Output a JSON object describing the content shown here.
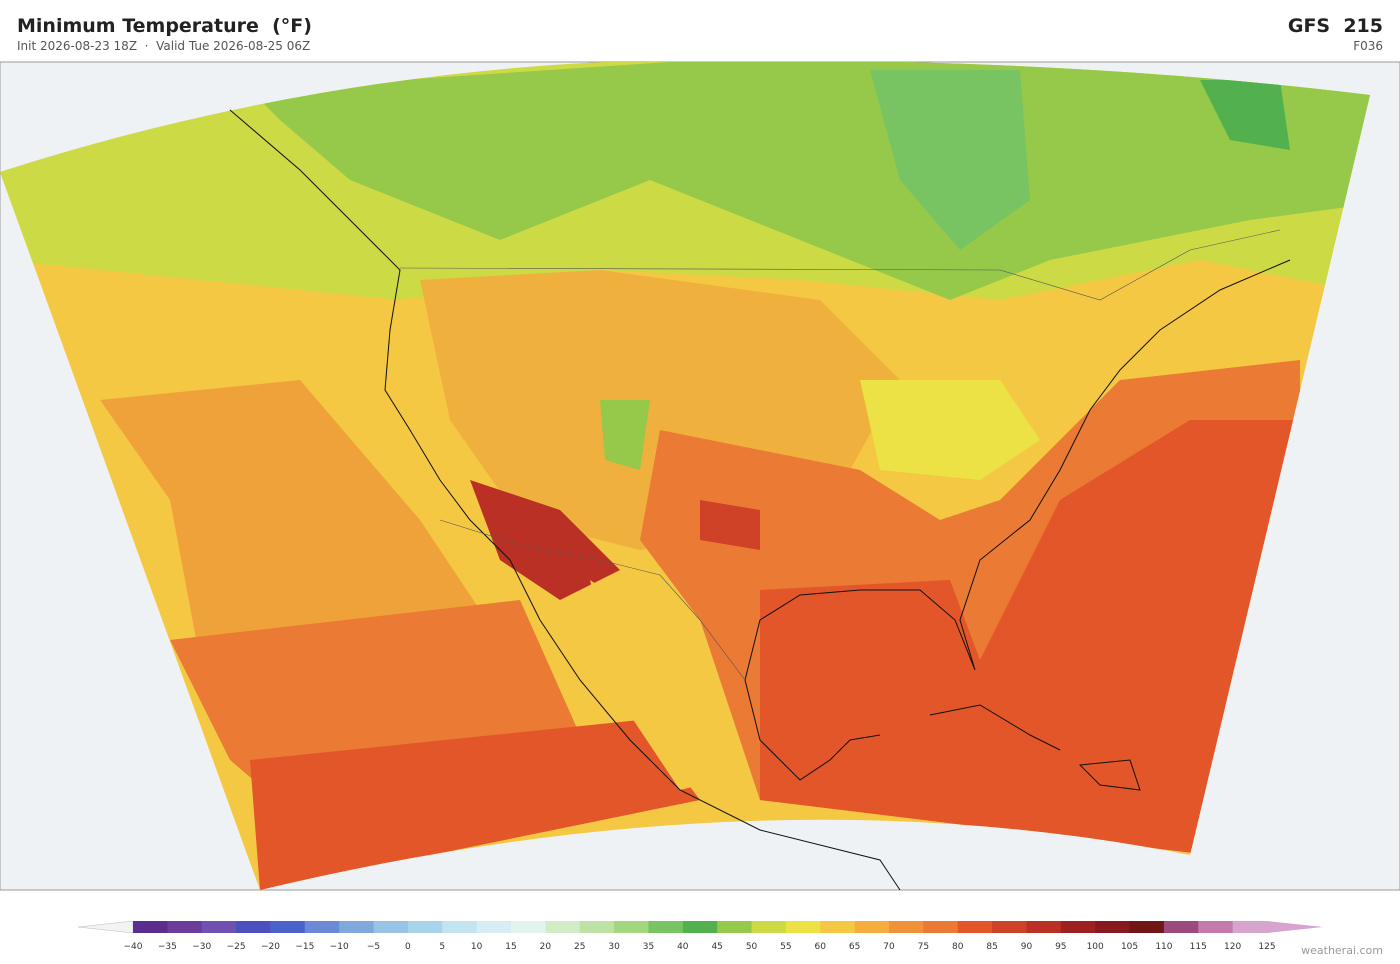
{
  "header": {
    "title": "Minimum Temperature  (°F)",
    "subtitle": "Init 2026-08-23 18Z  ·  Valid Tue 2026-08-25 06Z",
    "model": "GFS  215",
    "forecast_hour": "F036"
  },
  "colorbar": {
    "labels": [
      "−40",
      "−35",
      "−30",
      "−25",
      "−20",
      "−15",
      "−10",
      "−5",
      "0",
      "5",
      "10",
      "15",
      "20",
      "25",
      "30",
      "35",
      "40",
      "45",
      "50",
      "55",
      "60",
      "65",
      "70",
      "75",
      "80",
      "85",
      "90",
      "95",
      "100",
      "105",
      "110",
      "115",
      "120",
      "125"
    ],
    "colors": [
      "#5b2d8e",
      "#6a3d9a",
      "#7050b0",
      "#4b4fc0",
      "#4a63cc",
      "#6a8ad6",
      "#7fa8dc",
      "#98c3e4",
      "#a9d3ea",
      "#c2e3f0",
      "#d6edf4",
      "#e3f3ef",
      "#d2ecc8",
      "#bde3a4",
      "#a2d67f",
      "#79c462",
      "#52b04e",
      "#96c84a",
      "#ccda46",
      "#ece145",
      "#f4c842",
      "#f5ae3e",
      "#f0923a",
      "#ea7a34",
      "#e2562a",
      "#d04228",
      "#bb3025",
      "#9e2020",
      "#861a1c",
      "#701616",
      "#9c4a7e",
      "#c47aac",
      "#d6a4cc"
    ],
    "extend_colors": [
      "#f3f3f3",
      "#d9a3cf"
    ]
  },
  "watermark": "weatherai.com"
}
